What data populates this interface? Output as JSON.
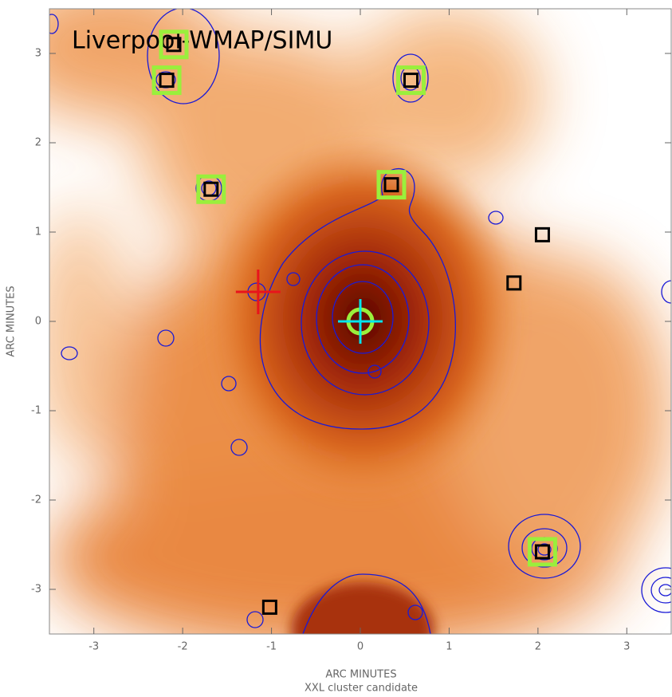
{
  "chart_data": {
    "type": "image",
    "title": "Liverpool-WMAP/SIMU",
    "xlabel": "ARC MINUTES",
    "ylabel": "ARC MINUTES",
    "subtitle": "XXL cluster candidate",
    "xlim": [
      -3.5,
      3.5
    ],
    "ylim": [
      -3.5,
      3.5
    ],
    "xticks": [
      -3,
      -2,
      -1,
      0,
      1,
      2,
      3
    ],
    "yticks": [
      -3,
      -2,
      -1,
      0,
      1,
      2,
      3
    ],
    "markers": [
      {
        "shape": "square",
        "color": "#9aef3c",
        "x": [
          -2.18,
          -2.1,
          0.57,
          -1.68,
          0.35,
          2.05
        ],
        "y": [
          2.7,
          3.1,
          2.7,
          1.48,
          1.53,
          -2.58
        ]
      },
      {
        "shape": "square",
        "color": "#000000",
        "x": [
          -2.18,
          -2.1,
          0.57,
          -1.68,
          0.35,
          2.05,
          2.05,
          1.73,
          -1.02
        ],
        "y": [
          2.7,
          3.1,
          2.7,
          1.48,
          1.53,
          -2.58,
          0.97,
          0.43,
          -3.2
        ]
      },
      {
        "shape": "cross",
        "color": "#e8141c",
        "x": [
          -1.15
        ],
        "y": [
          0.33
        ]
      },
      {
        "shape": "target",
        "color": "#00e5ee",
        "x": [
          0
        ],
        "y": [
          0
        ]
      }
    ]
  }
}
